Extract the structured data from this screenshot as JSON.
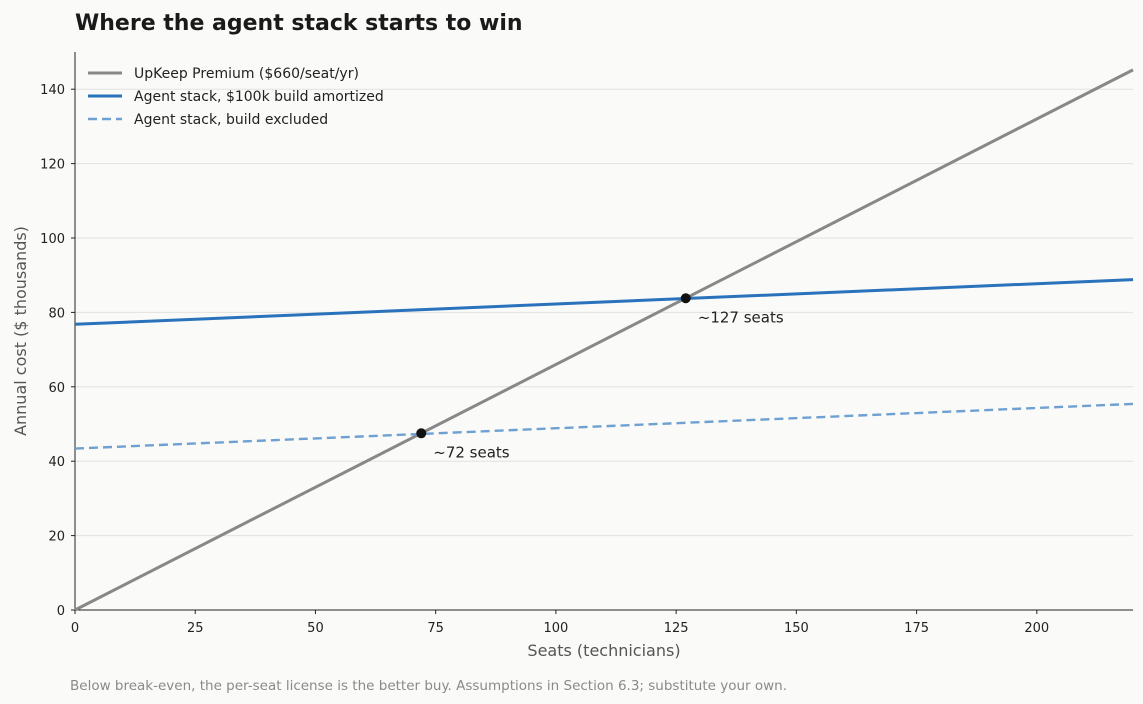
{
  "chart_data": {
    "type": "line",
    "title": "Where the agent stack starts to win",
    "xlabel": "Seats (technicians)",
    "ylabel": "Annual cost ($ thousands)",
    "xlim": [
      0,
      220
    ],
    "ylim": [
      0,
      150
    ],
    "xticks": [
      0,
      25,
      50,
      75,
      100,
      125,
      150,
      175,
      200
    ],
    "yticks": [
      0,
      20,
      40,
      60,
      80,
      100,
      120,
      140
    ],
    "grid": "horizontal",
    "legend_position": "top-left",
    "series": [
      {
        "name": "UpKeep Premium ($660/seat/yr)",
        "x": [
          0,
          220
        ],
        "y": [
          0,
          145.2
        ],
        "color": "#888888",
        "style": "solid"
      },
      {
        "name": "Agent stack, $100k build amortized",
        "x": [
          0,
          220
        ],
        "y": [
          76.8,
          88.8
        ],
        "color": "#2a72bb",
        "style": "solid"
      },
      {
        "name": "Agent stack, build excluded",
        "x": [
          0,
          220
        ],
        "y": [
          43.4,
          55.4
        ],
        "color": "#6fa0d2",
        "style": "dashed"
      }
    ],
    "annotations": [
      {
        "text": "~72 seats",
        "x": 72,
        "y": 47.5
      },
      {
        "text": "~127 seats",
        "x": 127,
        "y": 83.8
      }
    ],
    "footnote": "Below break-even, the per-seat license is the better buy. Assumptions in Section 6.3; substitute your own."
  }
}
